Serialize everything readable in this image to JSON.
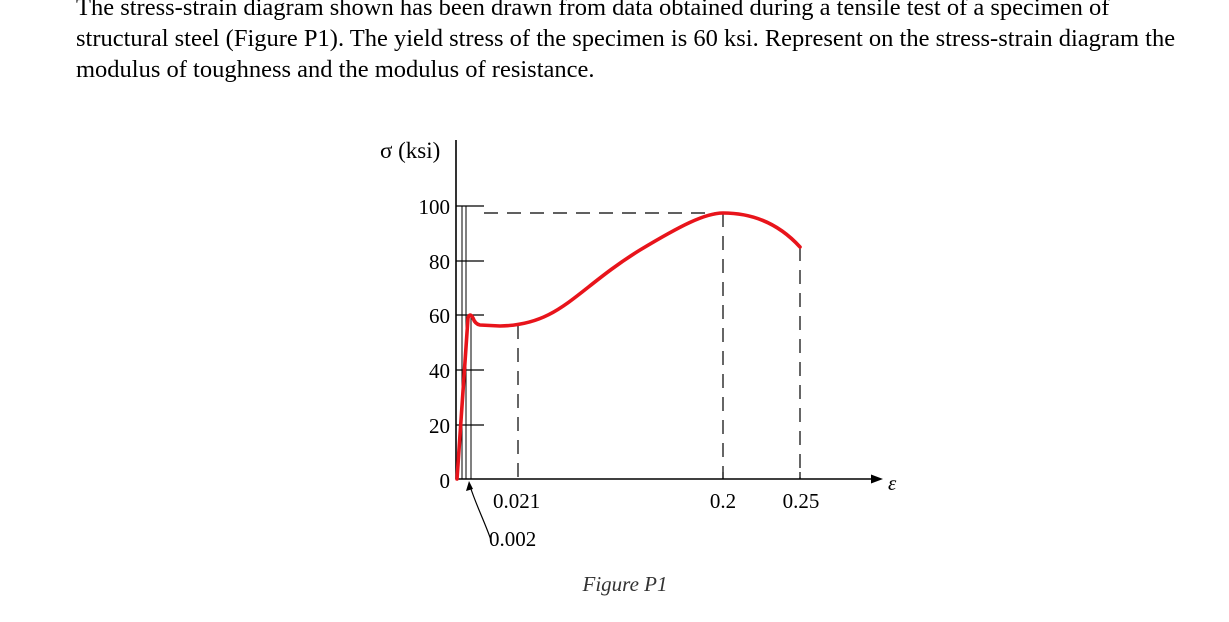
{
  "problem": {
    "text": "The stress-strain diagram shown has been drawn from data obtained during a tensile test of a specimen of structural steel (Figure P1). The yield stress of the specimen is 60 ksi. Represent on the stress-strain diagram the modulus of toughness and the modulus of resistance."
  },
  "figure": {
    "caption": "Figure P1"
  },
  "chart_data": {
    "type": "line",
    "ylabel": "σ (ksi)",
    "xlabel": "ε",
    "y_ticks": [
      "0",
      "20",
      "40",
      "60",
      "80",
      "100"
    ],
    "x_annotations": [
      "0.002",
      "0.021",
      "0.2",
      "0.25"
    ],
    "series": [
      {
        "color": "#e8141b",
        "points": [
          {
            "strain": 0,
            "stress": 0
          },
          {
            "strain": 0.002,
            "stress": 60
          },
          {
            "strain": 0.021,
            "stress": 55
          },
          {
            "strain": 0.2,
            "stress": 97
          },
          {
            "strain": 0.25,
            "stress": 85
          }
        ]
      }
    ],
    "colors": {
      "curve": "#e8141b",
      "axes": "#000000"
    }
  }
}
